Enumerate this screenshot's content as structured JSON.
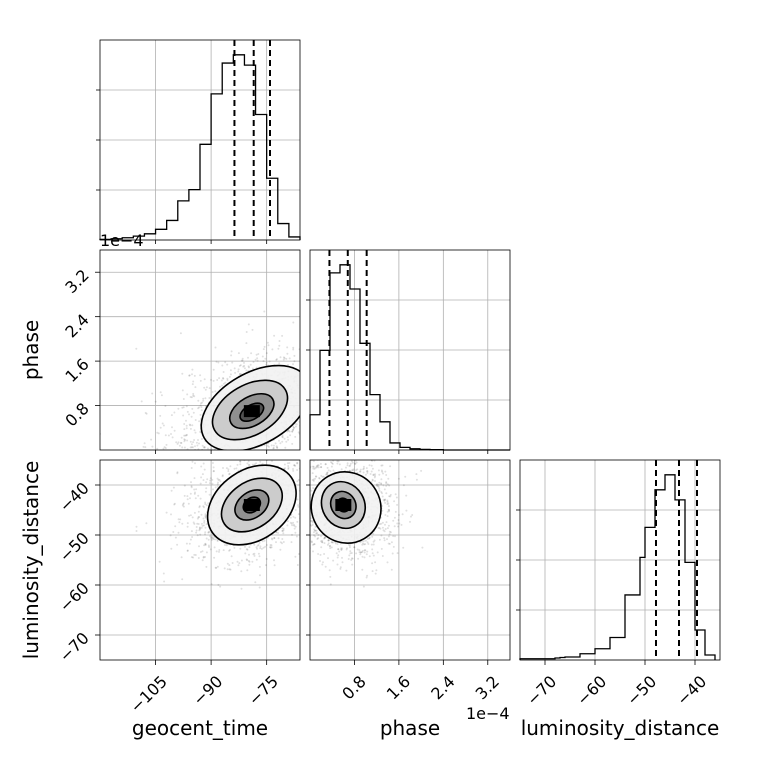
{
  "chart_data": {
    "type": "corner",
    "parameters": [
      {
        "key": "geocent_time",
        "label": "geocent_time",
        "range": [
          -120,
          -66
        ],
        "ticks": [
          -105,
          -90,
          -75
        ],
        "tick_labels": [
          "−105",
          "−90",
          "−75"
        ]
      },
      {
        "key": "phase",
        "label": "phase",
        "offset_text": "1e−4",
        "range": [
          0,
          3.6
        ],
        "ticks": [
          0.8,
          1.6,
          2.4,
          3.2
        ],
        "tick_labels": [
          "0.8",
          "1.6",
          "2.4",
          "3.2"
        ]
      },
      {
        "key": "luminosity_distance",
        "label": "luminosity_distance",
        "range": [
          -75,
          -35
        ],
        "ticks": [
          -70,
          -60,
          -50,
          -40
        ],
        "tick_labels": [
          "−70",
          "−60",
          "−50",
          "−40"
        ]
      }
    ],
    "top_left_offset_text": "1e−4",
    "histograms": [
      {
        "param": "geocent_time",
        "quantiles": [
          -83.7,
          -78.5,
          -74.1
        ],
        "bin_edges": [
          -120,
          -117,
          -114,
          -111,
          -108,
          -105,
          -102,
          -99,
          -96,
          -93,
          -90,
          -87,
          -84,
          -81,
          -78,
          -75,
          -72,
          -69,
          -66
        ],
        "counts": [
          0.3,
          0.6,
          1.1,
          1.9,
          3.0,
          5.2,
          9.5,
          19.0,
          24.5,
          46.5,
          71.0,
          86.0,
          90.0,
          85.0,
          61.0,
          30.0,
          8.0,
          1.5
        ]
      },
      {
        "param": "phase",
        "quantiles": [
          0.35,
          0.68,
          1.02
        ],
        "bin_edges": [
          0,
          0.18,
          0.36,
          0.54,
          0.72,
          0.9,
          1.08,
          1.26,
          1.44,
          1.62,
          1.8,
          1.98,
          2.16,
          2.4,
          3.6
        ],
        "counts": [
          17.5,
          49.5,
          88.0,
          92.0,
          80.0,
          53.0,
          27.5,
          14.0,
          3.5,
          1.3,
          0.6,
          0.3,
          0.15,
          0
        ]
      },
      {
        "param": "luminosity_distance",
        "quantiles": [
          -47.8,
          -43.2,
          -39.6
        ],
        "bin_edges": [
          -75,
          -68,
          -67,
          -66,
          -63,
          -60,
          -57,
          -54,
          -51,
          -50,
          -48,
          -46,
          -44,
          -42,
          -40,
          -38,
          -36
        ],
        "counts": [
          0.5,
          0.8,
          1.0,
          1.2,
          2.5,
          4.5,
          9.0,
          26.0,
          41.0,
          53.0,
          68.0,
          74.0,
          64.0,
          39.0,
          12.0,
          2.0
        ]
      }
    ],
    "joint_panels": [
      {
        "x": "geocent_time",
        "y": "phase",
        "peak": [
          -79,
          0.7
        ],
        "contours": [
          [
            -79,
            0.68,
            3.5,
            0.13
          ],
          [
            -79,
            0.7,
            6.5,
            0.26
          ],
          [
            -79.5,
            0.72,
            11,
            0.45
          ],
          [
            -78,
            0.75,
            16,
            0.64
          ]
        ],
        "tilt_deg": -30
      },
      {
        "x": "geocent_time",
        "y": "luminosity_distance",
        "peak": [
          -79,
          -44
        ],
        "contours": [
          [
            -79,
            -44,
            2.5,
            1.4
          ],
          [
            -79,
            -44,
            5,
            2.6
          ],
          [
            -79,
            -44,
            9,
            4.6
          ],
          [
            -79,
            -44,
            13,
            7.0
          ]
        ],
        "tilt_deg": -35
      },
      {
        "x": "phase",
        "y": "luminosity_distance",
        "peak": [
          0.6,
          -44
        ],
        "contours": [
          [
            0.6,
            -44,
            0.11,
            1.4
          ],
          [
            0.6,
            -44,
            0.22,
            2.8
          ],
          [
            0.6,
            -44,
            0.38,
            4.8
          ],
          [
            0.65,
            -44.5,
            0.62,
            7.2
          ]
        ],
        "tilt_deg": -30
      }
    ]
  }
}
